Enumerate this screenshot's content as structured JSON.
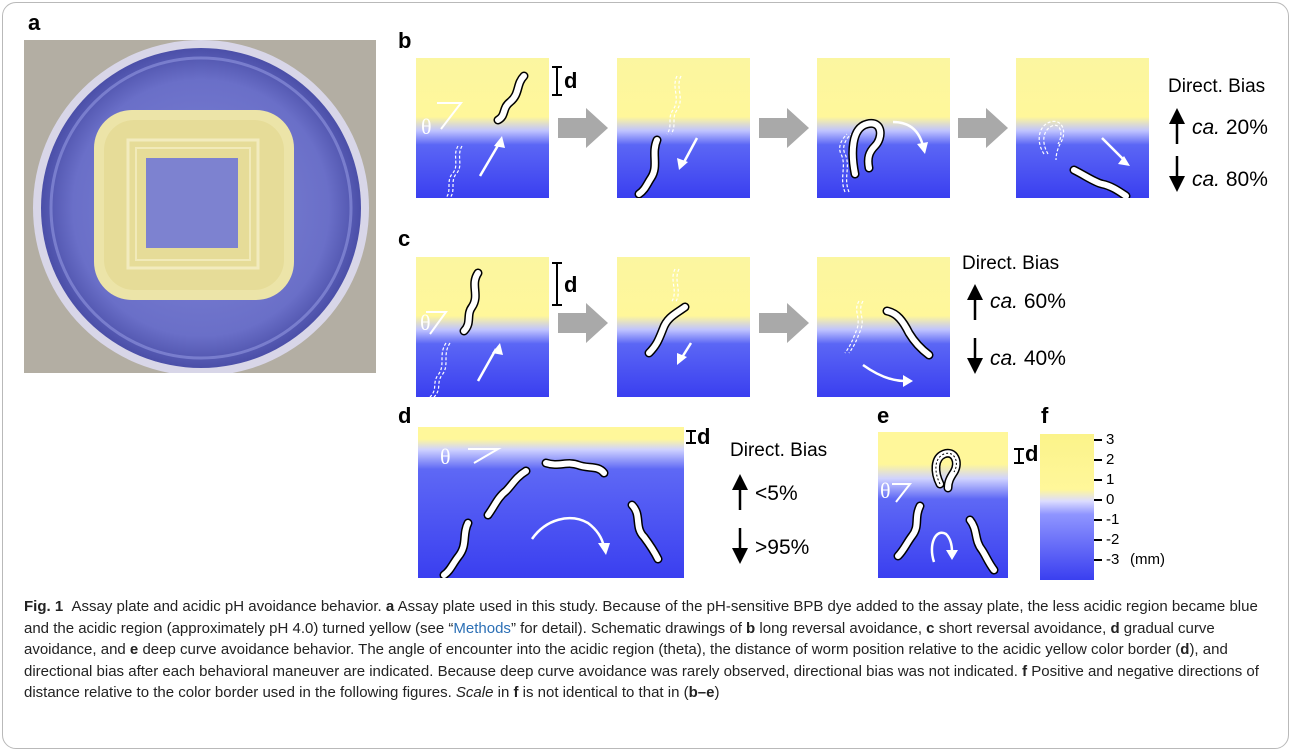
{
  "panels": {
    "a": "a",
    "b": "b",
    "c": "c",
    "d": "d",
    "e": "e",
    "f": "f"
  },
  "symbols": {
    "theta": "θ",
    "d": "d"
  },
  "bias": {
    "title": "Direct. Bias",
    "b": {
      "up": "ca. 20%",
      "down": "ca. 80%"
    },
    "c": {
      "up": "ca. 60%",
      "down": "ca. 40%"
    },
    "d": {
      "up": "<5%",
      "down": ">95%"
    }
  },
  "bias_prefix": "ca.",
  "bias_numbers": {
    "b_up": "20%",
    "b_down": "80%",
    "c_up": "60%",
    "c_down": "40%"
  },
  "scale": {
    "ticks": [
      "3",
      "2",
      "1",
      "0",
      "-1",
      "-2",
      "-3"
    ],
    "unit": "(mm)"
  },
  "caption": {
    "fig": "Fig. 1",
    "title": "Assay plate and acidic pH avoidance behavior.",
    "s1": "Assay plate used in this study. Because of the pH-sensitive BPB dye added to the assay plate, the less acidic region became blue and the acidic region (approximately pH 4.0) turned yellow (see “",
    "methods": "Methods",
    "s2": "” for detail). Schematic drawings of",
    "b_text": "long reversal avoidance,",
    "c_text": "short reversal avoidance,",
    "d_text": "gradual curve avoidance, and",
    "e_text": "deep curve avoidance behavior. The angle of encounter into the acidic region (theta), the distance of worm position relative to the acidic yellow color border (",
    "d_paren": "), and directional bias after each behavioral maneuver are indicated. Because deep curve avoidance was rarely observed, directional bias was not indicated.",
    "f_text": "Positive and negative directions of distance relative to the color border used in the following figures.",
    "scale_word": "Scale",
    "scale_in": "in",
    "scale_rest": "is not identical to that in (",
    "range": "b–e",
    "close": ")"
  },
  "colors": {
    "yellow": "#fff79a",
    "blue": "#3a3ff0",
    "arrow": "#a9a9a9",
    "link": "#2b6fb5"
  }
}
